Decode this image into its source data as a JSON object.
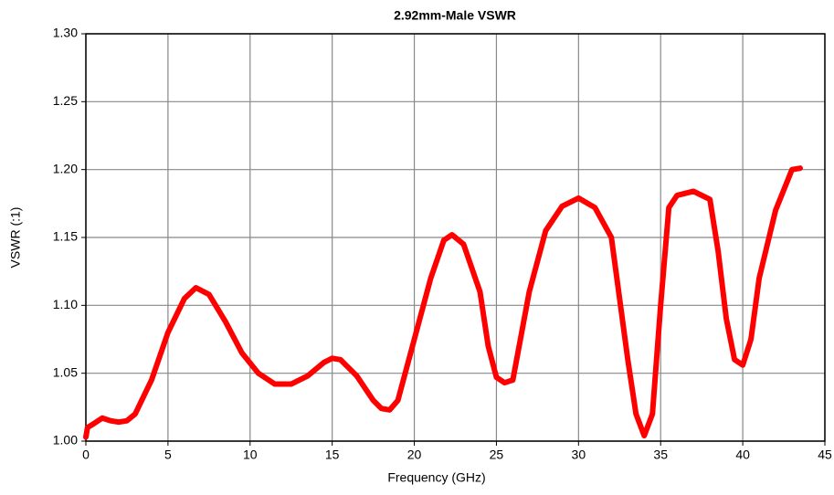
{
  "chart_data": {
    "type": "line",
    "title": "2.92mm-Male VSWR",
    "x_label": "Frequency (GHz)",
    "y_label": "VSWR (:1)",
    "x": [
      0,
      0.1,
      0.5,
      1,
      1.5,
      2,
      2.5,
      3,
      4,
      5,
      6,
      6.7,
      7.5,
      8.5,
      9.5,
      10.5,
      11.5,
      12.5,
      13.5,
      14.5,
      15,
      15.5,
      16.5,
      17.5,
      18,
      18.5,
      19,
      20,
      21,
      21.8,
      22.3,
      23,
      24,
      24.5,
      25,
      25.5,
      26,
      27,
      28,
      29,
      30,
      31,
      32,
      33,
      33.5,
      34,
      34.5,
      35,
      35.5,
      36,
      37,
      38,
      38.5,
      39,
      39.5,
      40,
      40.5,
      41,
      42,
      43,
      43.5
    ],
    "series": [
      {
        "name": "VSWR",
        "color": "#ff0000",
        "values": [
          1.003,
          1.01,
          1.013,
          1.017,
          1.015,
          1.014,
          1.015,
          1.02,
          1.045,
          1.08,
          1.105,
          1.113,
          1.108,
          1.088,
          1.065,
          1.05,
          1.042,
          1.042,
          1.048,
          1.058,
          1.061,
          1.06,
          1.048,
          1.03,
          1.024,
          1.023,
          1.03,
          1.075,
          1.12,
          1.148,
          1.152,
          1.145,
          1.11,
          1.07,
          1.047,
          1.043,
          1.045,
          1.11,
          1.155,
          1.173,
          1.179,
          1.172,
          1.15,
          1.06,
          1.02,
          1.004,
          1.02,
          1.1,
          1.172,
          1.181,
          1.184,
          1.178,
          1.14,
          1.09,
          1.06,
          1.056,
          1.075,
          1.12,
          1.17,
          1.2,
          1.201
        ]
      }
    ],
    "xlim": [
      0,
      45
    ],
    "xticks": [
      0,
      5,
      10,
      15,
      20,
      25,
      30,
      35,
      40,
      45
    ],
    "ylim": [
      1.0,
      1.3
    ],
    "yticks": [
      {
        "value": 1.0,
        "label": "1.00"
      },
      {
        "value": 1.05,
        "label": "1.05"
      },
      {
        "value": 1.1,
        "label": "1.10"
      },
      {
        "value": 1.15,
        "label": "1.15"
      },
      {
        "value": 1.2,
        "label": "1.20"
      },
      {
        "value": 1.25,
        "label": "1.25"
      },
      {
        "value": 1.3,
        "label": "1.30"
      }
    ],
    "grid": true
  }
}
